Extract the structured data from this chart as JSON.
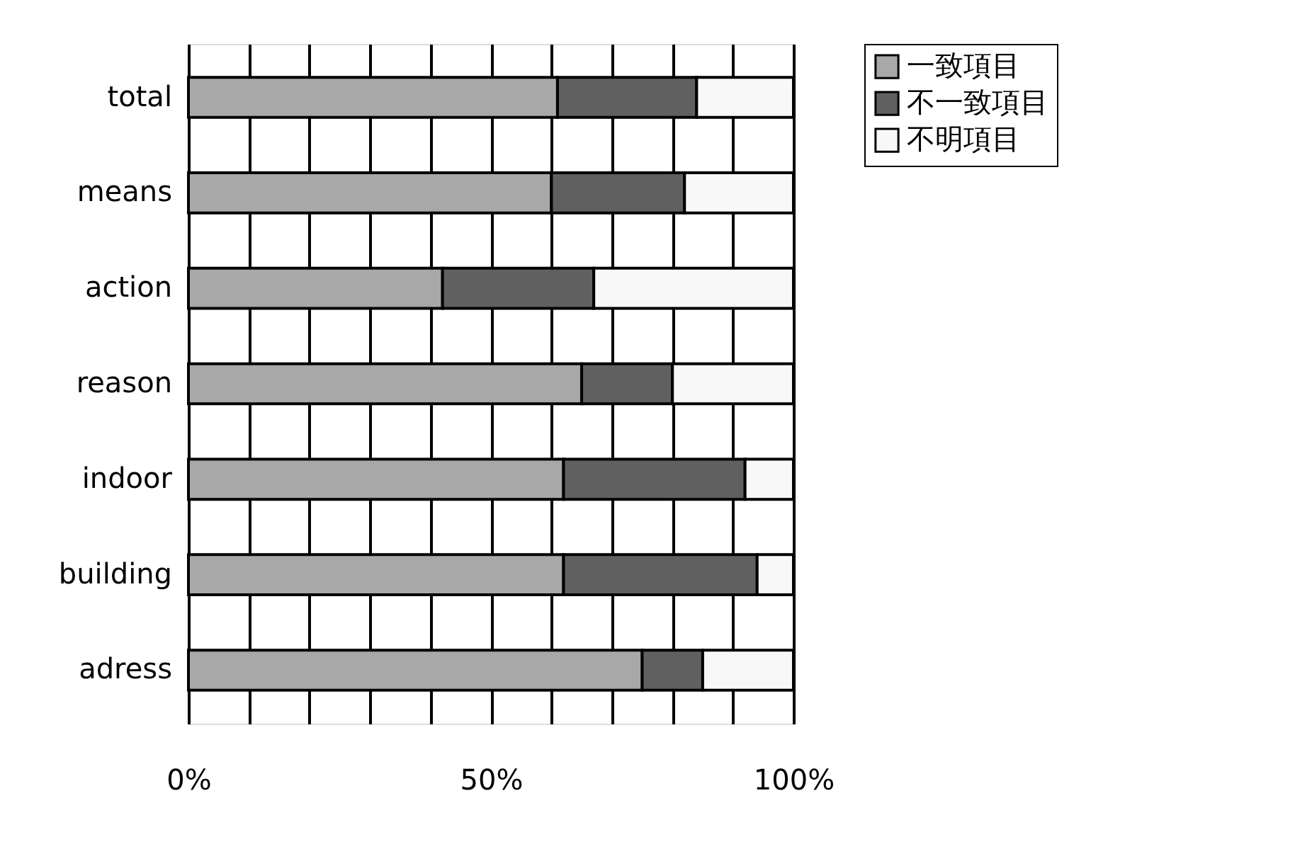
{
  "chart_data": {
    "type": "bar",
    "orientation": "horizontal",
    "stacked": true,
    "categories": [
      "total",
      "means",
      "action",
      "reason",
      "indoor",
      "building",
      "adress"
    ],
    "series": [
      {
        "name": "一致項目",
        "color": "#a8a8a8",
        "values": [
          61,
          60,
          42,
          65,
          62,
          62,
          75
        ]
      },
      {
        "name": "不一致項目",
        "color": "#606060",
        "values": [
          23,
          22,
          25,
          15,
          30,
          32,
          10
        ]
      },
      {
        "name": "不明項目",
        "color": "#f8f8f8",
        "values": [
          16,
          18,
          33,
          20,
          8,
          6,
          15
        ]
      }
    ],
    "xlim": [
      0,
      100
    ],
    "xticks": [
      {
        "value": 0,
        "label": "0%"
      },
      {
        "value": 10,
        "label": null
      },
      {
        "value": 20,
        "label": null
      },
      {
        "value": 30,
        "label": null
      },
      {
        "value": 40,
        "label": null
      },
      {
        "value": 50,
        "label": "50%"
      },
      {
        "value": 60,
        "label": null
      },
      {
        "value": 70,
        "label": null
      },
      {
        "value": 80,
        "label": null
      },
      {
        "value": 90,
        "label": null
      },
      {
        "value": 100,
        "label": "100%"
      }
    ],
    "grid": "x",
    "legend": "right"
  }
}
